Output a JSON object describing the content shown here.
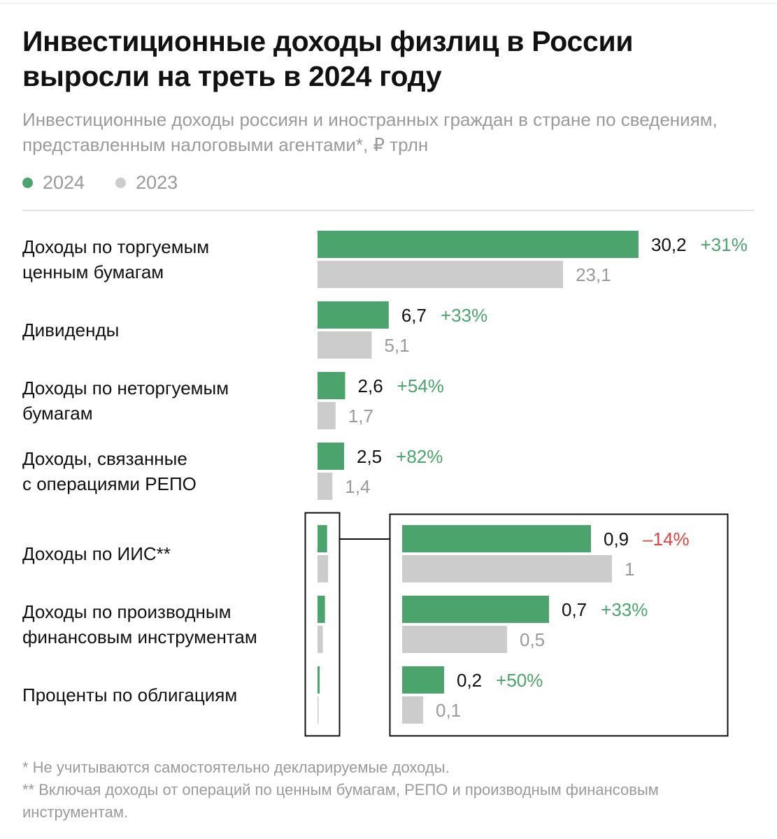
{
  "title": "Инвестиционные доходы физлиц в России выросли на треть в 2024 году",
  "subtitle": "Инвестиционные доходы россиян и иностранных граждан в стране по сведениям, представленным налоговыми агентами*, ₽ трлн",
  "legend": [
    {
      "label": "2024",
      "color": "#4ba46b"
    },
    {
      "label": "2023",
      "color": "#cccccc"
    }
  ],
  "colors": {
    "series_2024": "#4ba46b",
    "series_2023": "#cccccc",
    "text_dark": "#111111",
    "text_gray": "#9a9a9a",
    "change_positive": "#4ba46b",
    "change_negative": "#e0443e"
  },
  "chart_data": {
    "type": "bar",
    "orientation": "horizontal",
    "unit": "₽ трлн",
    "categories": [
      {
        "label": "Доходы по торгуемым ценным бумагам",
        "lines": [
          "Доходы по торгуемым",
          "ценным бумагам"
        ],
        "v2024": 30.2,
        "v2023": 23.1,
        "label2024": "30,2",
        "label2023": "23,1",
        "change": "+31%",
        "change_sign": "positive",
        "zoomed": false
      },
      {
        "label": "Дивиденды",
        "lines": [
          "Дивиденды"
        ],
        "v2024": 6.7,
        "v2023": 5.1,
        "label2024": "6,7",
        "label2023": "5,1",
        "change": "+33%",
        "change_sign": "positive",
        "zoomed": false
      },
      {
        "label": "Доходы по неторгуемым бумагам",
        "lines": [
          "Доходы по неторгуемым",
          "бумагам"
        ],
        "v2024": 2.6,
        "v2023": 1.7,
        "label2024": "2,6",
        "label2023": "1,7",
        "change": "+54%",
        "change_sign": "positive",
        "zoomed": false
      },
      {
        "label": "Доходы, связанные с операциями РЕПО",
        "lines": [
          "Доходы, связанные",
          "с операциями РЕПО"
        ],
        "v2024": 2.5,
        "v2023": 1.4,
        "label2024": "2,5",
        "label2023": "1,4",
        "change": "+82%",
        "change_sign": "positive",
        "zoomed": false
      },
      {
        "label": "Доходы по ИИС**",
        "lines": [
          "Доходы по ИИС**"
        ],
        "v2024": 0.9,
        "v2023": 1.0,
        "label2024": "0,9",
        "label2023": "1",
        "change": "–14%",
        "change_sign": "negative",
        "zoomed": true
      },
      {
        "label": "Доходы по производным финансовым инструментам",
        "lines": [
          "Доходы по производным",
          "финансовым инструментам"
        ],
        "v2024": 0.7,
        "v2023": 0.5,
        "label2024": "0,7",
        "label2023": "0,5",
        "change": "+33%",
        "change_sign": "positive",
        "zoomed": true
      },
      {
        "label": "Проценты по облигациям",
        "lines": [
          "Проценты по облигациям"
        ],
        "v2024": 0.2,
        "v2023": 0.1,
        "label2024": "0,2",
        "label2023": "0,1",
        "change": "+50%",
        "change_sign": "positive",
        "zoomed": true
      }
    ],
    "series": [
      {
        "name": "2024"
      },
      {
        "name": "2023"
      }
    ],
    "xlim": [
      0,
      30.2
    ],
    "zoom_xlim": [
      0,
      1.12
    ],
    "grid": false,
    "legend_position": "top-left"
  },
  "footnotes": [
    "* Не учитываются самостоятельно декларируемые доходы.",
    "** Включая доходы от операций по ценным бумагам, РЕПО и производным финансовым инструментам."
  ]
}
